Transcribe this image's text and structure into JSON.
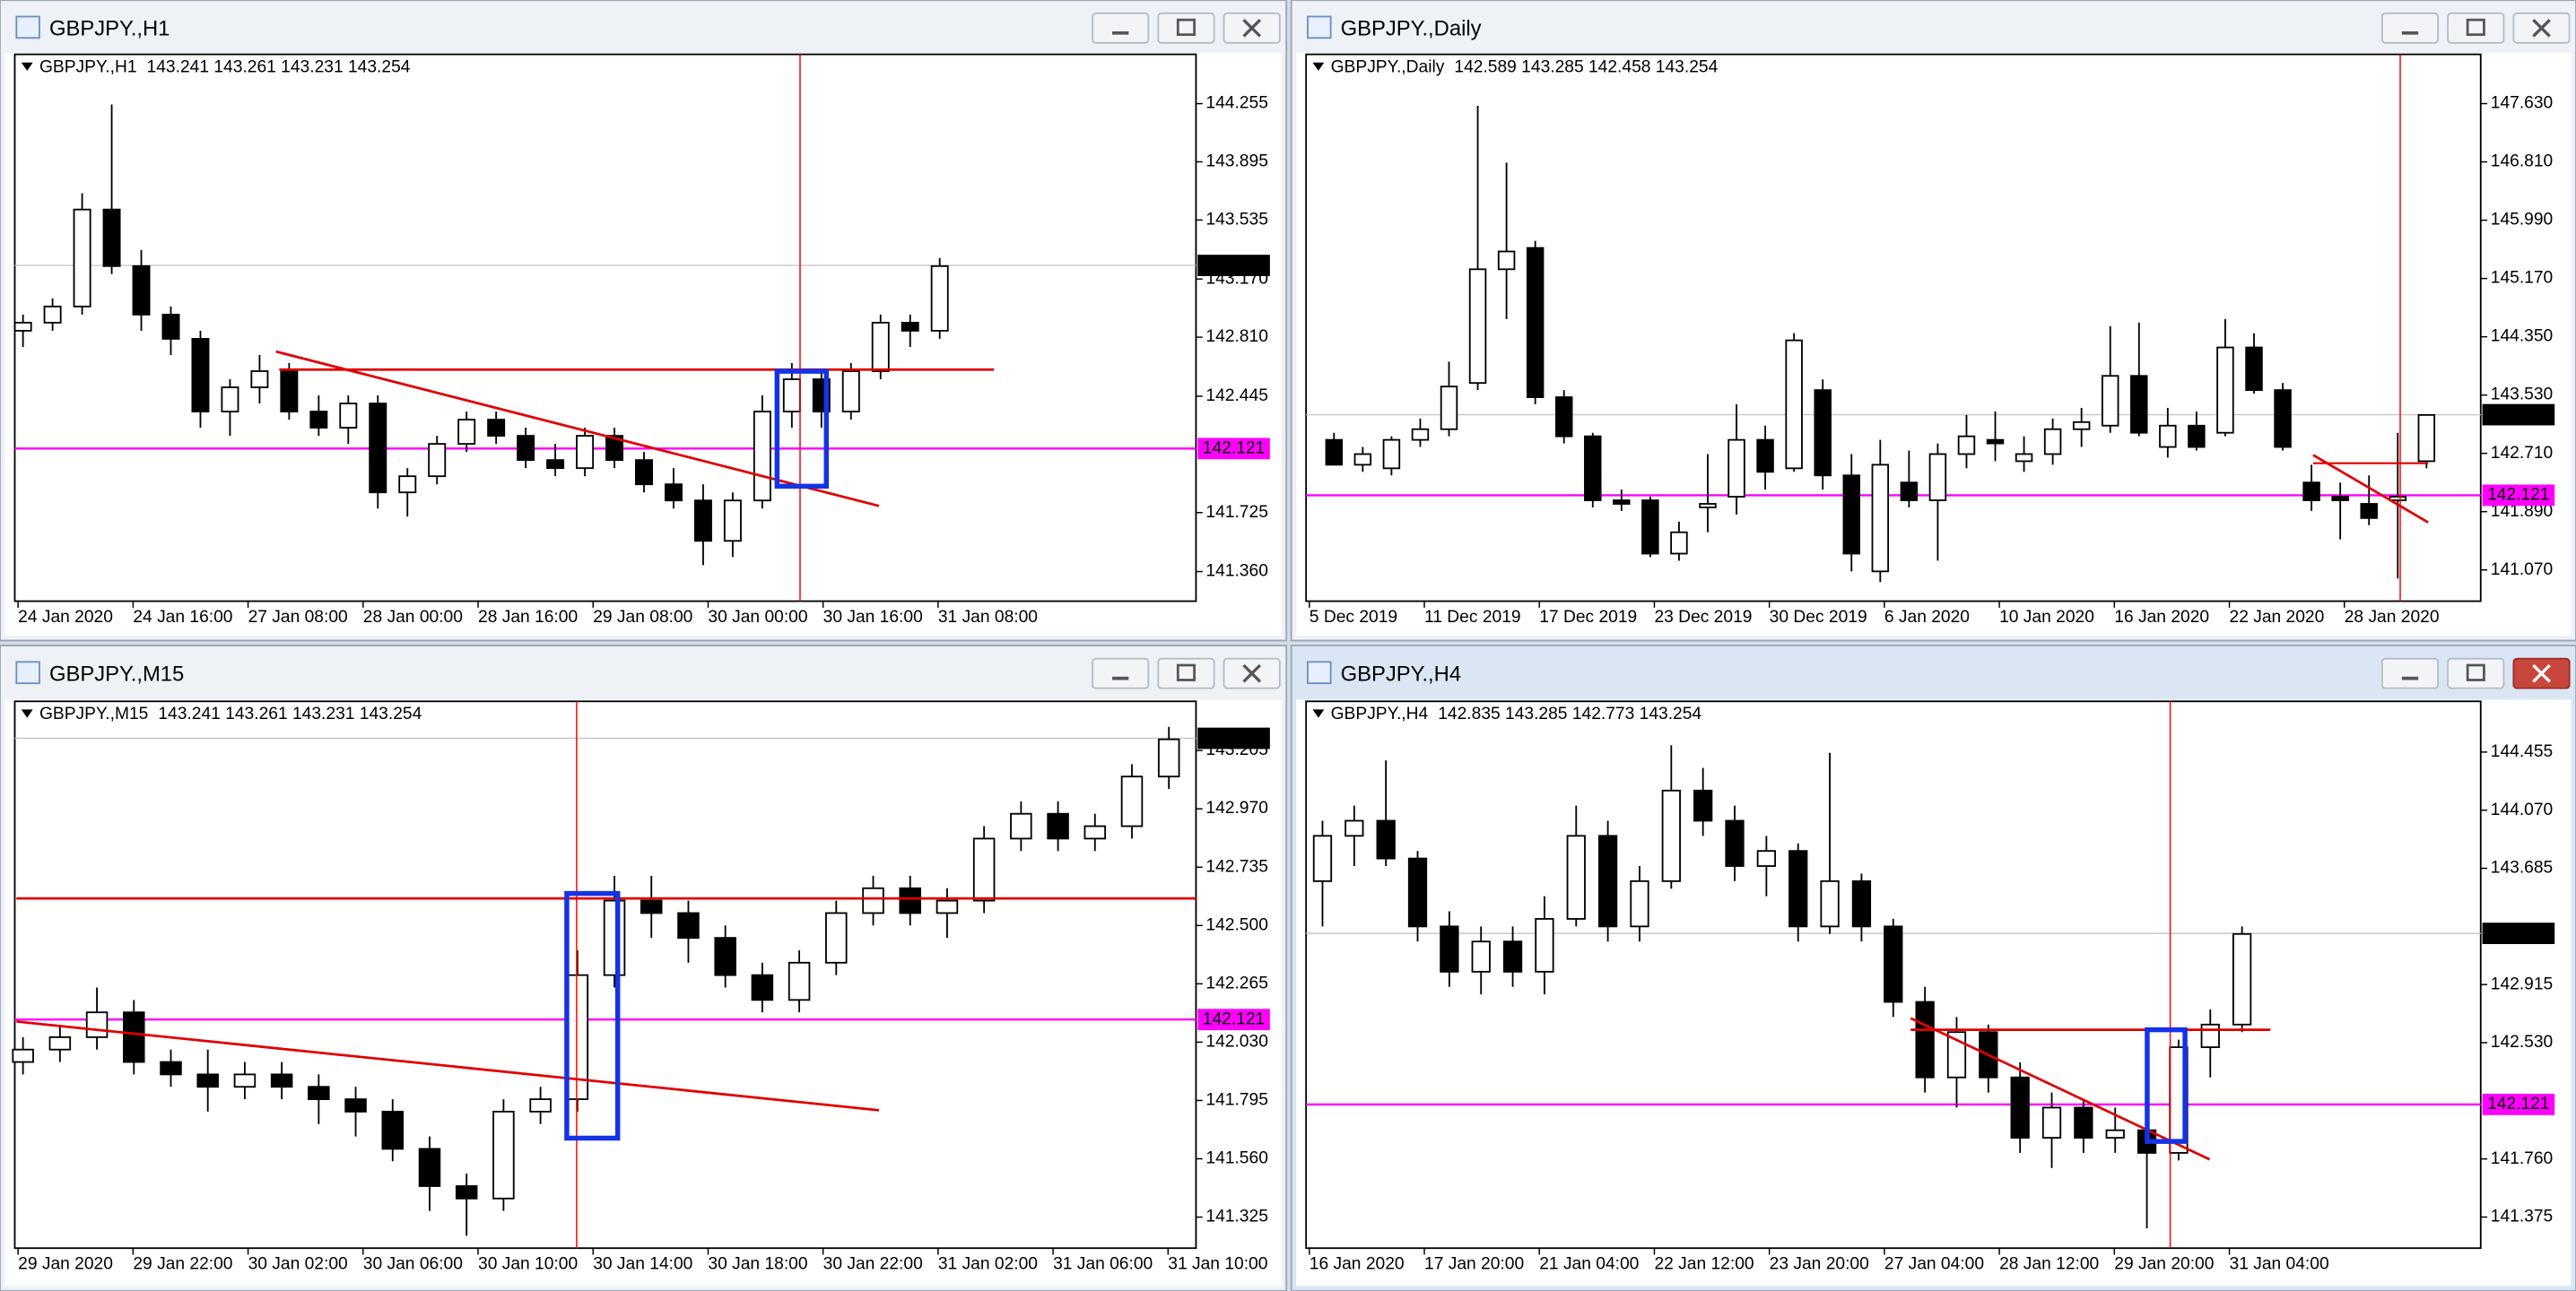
{
  "chart_data": [
    {
      "type": "candlestick",
      "window_title": "GBPJPY.,H1",
      "title": "GBPJPY.,H1",
      "quote": "143.241 143.261 143.231 143.254",
      "ylim": [
        141.177,
        144.56
      ],
      "yticks": [
        144.255,
        143.895,
        143.535,
        {
          "value": 143.17,
          "label": "143.170"
        },
        {
          "value": 142.81,
          "label": "142.810"
        },
        142.445,
        141.725,
        {
          "value": 141.36,
          "label": "141.360"
        }
      ],
      "x_labels": [
        "24 Jan 2020",
        "24 Jan 16:00",
        "27 Jan 08:00",
        "28 Jan 00:00",
        "28 Jan 16:00",
        "29 Jan 08:00",
        "30 Jan 00:00",
        "30 Jan 16:00",
        "31 Jan 08:00"
      ],
      "open": [
        142.85,
        142.9,
        143.0,
        143.6,
        143.25,
        142.95,
        142.8,
        142.35,
        142.5,
        142.6,
        142.35,
        142.25,
        142.4,
        141.85,
        141.95,
        142.15,
        142.3,
        142.2,
        142.05,
        142.0,
        142.2,
        142.05,
        141.9,
        141.8,
        141.55,
        141.8,
        142.35,
        142.55,
        142.35,
        142.6,
        142.9,
        142.85
      ],
      "high": [
        142.95,
        143.05,
        143.7,
        144.25,
        143.35,
        143.0,
        142.85,
        142.55,
        142.7,
        142.65,
        142.45,
        142.45,
        142.45,
        142.0,
        142.2,
        142.35,
        142.35,
        142.25,
        142.15,
        142.25,
        142.25,
        142.1,
        142.0,
        141.9,
        141.85,
        142.45,
        142.65,
        142.6,
        142.65,
        142.95,
        142.95,
        143.3
      ],
      "low": [
        142.75,
        142.85,
        142.95,
        143.2,
        142.85,
        142.7,
        142.25,
        142.2,
        142.4,
        142.3,
        142.2,
        142.15,
        141.75,
        141.7,
        141.9,
        142.1,
        142.15,
        142.0,
        141.95,
        141.95,
        142.0,
        141.85,
        141.75,
        141.4,
        141.45,
        141.75,
        142.25,
        142.25,
        142.3,
        142.55,
        142.75,
        142.8
      ],
      "close": [
        142.9,
        143.0,
        143.6,
        143.25,
        142.95,
        142.8,
        142.35,
        142.5,
        142.6,
        142.35,
        142.25,
        142.4,
        141.85,
        141.95,
        142.15,
        142.3,
        142.2,
        142.05,
        142.0,
        142.2,
        142.05,
        141.9,
        141.8,
        141.55,
        141.8,
        142.35,
        142.55,
        142.35,
        142.6,
        142.9,
        142.85,
        143.25
      ],
      "current_price": 143.254,
      "level": 142.121
    },
    {
      "type": "candlestick",
      "window_title": "GBPJPY.,Daily",
      "title": "GBPJPY.,Daily",
      "quote": "142.589 143.285 142.458 143.254",
      "ylim": [
        140.631,
        148.323
      ],
      "yticks": [
        {
          "value": 147.63,
          "label": "147.630"
        },
        {
          "value": 146.81,
          "label": "146.810"
        },
        {
          "value": 145.99,
          "label": "145.990"
        },
        {
          "value": 145.17,
          "label": "145.170"
        },
        {
          "value": 144.35,
          "label": "144.350"
        },
        {
          "value": 143.53,
          "label": "143.530"
        },
        {
          "value": 142.71,
          "label": "142.710"
        },
        {
          "value": 141.89,
          "label": "141.890"
        },
        {
          "value": 141.07,
          "label": "141.070"
        }
      ],
      "x_labels": [
        "5 Dec 2019",
        "11 Dec 2019",
        "17 Dec 2019",
        "23 Dec 2019",
        "30 Dec 2019",
        "6 Jan 2020",
        "10 Jan 2020",
        "16 Jan 2020",
        "22 Jan 2020",
        "28 Jan 2020"
      ],
      "open": [
        142.9,
        142.55,
        142.5,
        142.9,
        143.05,
        143.7,
        145.3,
        145.6,
        143.5,
        142.95,
        142.05,
        142.05,
        141.3,
        141.95,
        142.1,
        142.9,
        142.5,
        143.6,
        142.4,
        141.05,
        142.3,
        142.05,
        142.7,
        142.9,
        142.6,
        142.7,
        143.05,
        143.1,
        143.8,
        142.8,
        143.1,
        143.0,
        144.2,
        143.6,
        142.3,
        142.1,
        142.0,
        142.05,
        142.6
      ],
      "high": [
        143.0,
        142.8,
        142.95,
        143.2,
        144.0,
        147.6,
        146.8,
        145.7,
        143.6,
        143.0,
        142.2,
        142.1,
        141.75,
        142.7,
        143.4,
        143.1,
        144.4,
        143.75,
        142.7,
        142.9,
        142.75,
        142.85,
        143.25,
        143.3,
        142.95,
        143.2,
        143.35,
        144.5,
        144.55,
        143.35,
        143.3,
        144.6,
        144.4,
        143.7,
        142.55,
        142.3,
        142.4,
        143.0,
        143.25
      ],
      "low": [
        142.55,
        142.45,
        142.4,
        142.8,
        142.95,
        143.6,
        144.6,
        143.4,
        142.85,
        141.95,
        141.9,
        141.25,
        141.2,
        141.6,
        141.85,
        142.2,
        142.45,
        142.2,
        141.05,
        140.9,
        141.95,
        141.2,
        142.5,
        142.6,
        142.45,
        142.55,
        142.8,
        143.0,
        142.95,
        142.65,
        142.75,
        142.95,
        143.55,
        142.75,
        141.9,
        141.5,
        141.7,
        140.95,
        142.5
      ],
      "close": [
        142.55,
        142.7,
        142.9,
        143.05,
        143.65,
        145.3,
        145.55,
        143.5,
        142.95,
        142.05,
        142.0,
        141.3,
        141.6,
        142.0,
        142.9,
        142.45,
        144.3,
        142.4,
        141.3,
        142.55,
        142.05,
        142.7,
        142.95,
        142.85,
        142.7,
        143.05,
        143.15,
        143.8,
        143.0,
        143.1,
        142.8,
        144.2,
        143.6,
        142.8,
        142.05,
        142.05,
        141.8,
        142.1,
        143.25
      ],
      "current_price": 143.254,
      "level": 142.121
    },
    {
      "type": "candlestick",
      "window_title": "GBPJPY.,M15",
      "title": "GBPJPY.,M15",
      "quote": "143.241 143.261 143.231 143.254",
      "ylim": [
        141.2,
        143.403
      ],
      "yticks": [
        143.205,
        {
          "value": 142.97,
          "label": "142.970"
        },
        142.735,
        {
          "value": 142.5,
          "label": "142.500"
        },
        142.265,
        {
          "value": 142.03,
          "label": "142.030"
        },
        141.795,
        {
          "value": 141.56,
          "label": "141.560"
        },
        141.325
      ],
      "x_labels": [
        "29 Jan 2020",
        "29 Jan 22:00",
        "30 Jan 02:00",
        "30 Jan 06:00",
        "30 Jan 10:00",
        "30 Jan 14:00",
        "30 Jan 18:00",
        "30 Jan 22:00",
        "31 Jan 02:00",
        "31 Jan 06:00",
        "31 Jan 10:00"
      ],
      "open": [
        141.95,
        142.0,
        142.05,
        142.15,
        141.95,
        141.9,
        141.85,
        141.9,
        141.85,
        141.8,
        141.75,
        141.6,
        141.45,
        141.4,
        141.75,
        141.8,
        142.3,
        142.6,
        142.55,
        142.45,
        142.3,
        142.2,
        142.35,
        142.55,
        142.65,
        142.55,
        142.6,
        142.85,
        142.95,
        142.85,
        142.9,
        143.1
      ],
      "high": [
        142.05,
        142.1,
        142.25,
        142.2,
        142.0,
        142.0,
        141.95,
        141.95,
        141.9,
        141.85,
        141.8,
        141.65,
        141.5,
        141.8,
        141.85,
        142.4,
        142.7,
        142.7,
        142.6,
        142.5,
        142.35,
        142.4,
        142.6,
        142.7,
        142.7,
        142.65,
        142.9,
        143.0,
        143.0,
        142.95,
        143.15,
        143.3
      ],
      "low": [
        141.9,
        141.95,
        142.0,
        141.9,
        141.85,
        141.75,
        141.8,
        141.8,
        141.7,
        141.65,
        141.55,
        141.35,
        141.25,
        141.35,
        141.7,
        141.75,
        142.25,
        142.45,
        142.35,
        142.25,
        142.15,
        142.15,
        142.3,
        142.5,
        142.5,
        142.45,
        142.55,
        142.8,
        142.8,
        142.8,
        142.85,
        143.05
      ],
      "close": [
        142.0,
        142.05,
        142.15,
        141.95,
        141.9,
        141.85,
        141.9,
        141.85,
        141.8,
        141.75,
        141.6,
        141.45,
        141.4,
        141.75,
        141.8,
        142.3,
        142.6,
        142.55,
        142.45,
        142.3,
        142.2,
        142.35,
        142.55,
        142.65,
        142.55,
        142.6,
        142.85,
        142.95,
        142.85,
        142.9,
        143.1,
        143.25
      ],
      "current_price": 143.254,
      "level": 142.121
    },
    {
      "type": "candlestick",
      "window_title": "GBPJPY.,H4",
      "title": "GBPJPY.,H4",
      "quote": "142.835 143.285 142.773 143.254",
      "ylim": [
        141.169,
        144.791
      ],
      "yticks": [
        144.455,
        {
          "value": 144.07,
          "label": "144.070"
        },
        143.685,
        142.915,
        {
          "value": 142.53,
          "label": "142.530"
        },
        {
          "value": 141.76,
          "label": "141.760"
        },
        141.375
      ],
      "x_labels": [
        "16 Jan 2020",
        "17 Jan 20:00",
        "21 Jan 04:00",
        "22 Jan 12:00",
        "23 Jan 20:00",
        "27 Jan 04:00",
        "28 Jan 12:00",
        "29 Jan 20:00",
        "31 Jan 04:00"
      ],
      "open": [
        143.6,
        143.9,
        144.0,
        143.75,
        143.3,
        143.0,
        143.2,
        143.0,
        143.35,
        143.9,
        143.3,
        143.6,
        144.2,
        144.0,
        143.7,
        143.8,
        143.3,
        143.6,
        143.3,
        142.8,
        142.3,
        142.6,
        142.3,
        141.9,
        142.1,
        141.9,
        141.95,
        141.8,
        142.5,
        142.65
      ],
      "high": [
        144.0,
        144.1,
        144.4,
        143.8,
        143.4,
        143.3,
        143.3,
        143.5,
        144.1,
        144.0,
        143.7,
        144.5,
        144.35,
        144.1,
        143.9,
        143.85,
        144.45,
        143.65,
        143.35,
        142.9,
        142.7,
        142.65,
        142.4,
        142.2,
        142.15,
        142.1,
        142.0,
        142.55,
        142.75,
        143.3
      ],
      "low": [
        143.3,
        143.7,
        143.7,
        143.2,
        142.9,
        142.85,
        142.9,
        142.85,
        143.3,
        143.2,
        143.2,
        143.55,
        143.9,
        143.6,
        143.5,
        143.2,
        143.25,
        143.2,
        142.7,
        142.2,
        142.1,
        142.2,
        141.8,
        141.7,
        141.8,
        141.8,
        141.3,
        141.75,
        142.3,
        142.6
      ],
      "close": [
        143.9,
        144.0,
        143.75,
        143.3,
        143.0,
        143.2,
        143.0,
        143.35,
        143.9,
        143.3,
        143.6,
        144.2,
        144.0,
        143.7,
        143.8,
        143.3,
        143.6,
        143.3,
        142.8,
        142.3,
        142.6,
        142.3,
        141.9,
        142.1,
        141.9,
        141.95,
        141.8,
        142.5,
        142.65,
        143.25
      ],
      "current_price": 143.254,
      "level": 142.121
    }
  ]
}
